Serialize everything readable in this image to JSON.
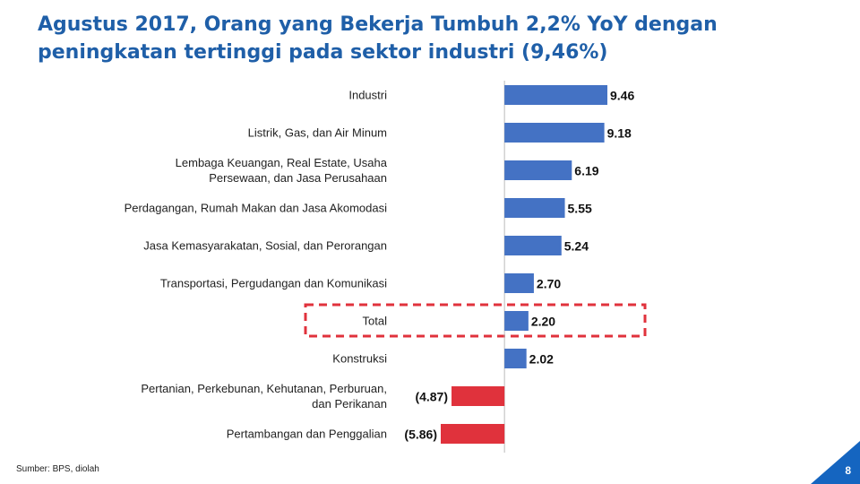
{
  "chart_data": {
    "type": "hbar",
    "title": "Agustus 2017, Orang yang Bekerja Tumbuh 2,2% YoY dengan peningkatan tertinggi pada sektor industri (9,46%)",
    "categories": [
      "Industri",
      "Listrik, Gas, dan Air Minum",
      "Lembaga Keuangan, Real Estate, Usaha\nPersewaan, dan Jasa Perusahaan",
      "Perdagangan, Rumah Makan dan Jasa Akomodasi",
      "Jasa Kemasyarakatan, Sosial, dan Perorangan",
      "Transportasi, Pergudangan dan Komunikasi",
      "Total",
      "Konstruksi",
      "Pertanian, Perkebunan, Kehutanan, Perburuan,\ndan Perikanan",
      "Pertambangan dan Penggalian"
    ],
    "values": [
      9.46,
      9.18,
      6.19,
      5.55,
      5.24,
      2.7,
      2.2,
      2.02,
      -4.87,
      -5.86
    ],
    "value_labels": [
      "9.46",
      "9.18",
      "6.19",
      "5.55",
      "5.24",
      "2.70",
      "2.20",
      "2.02",
      "(4.87)",
      "(5.86)"
    ],
    "colors": {
      "positive": "#4472c4",
      "negative": "#e0323c"
    },
    "source": "Sumber: BPS, diolah"
  },
  "page_number": "8"
}
